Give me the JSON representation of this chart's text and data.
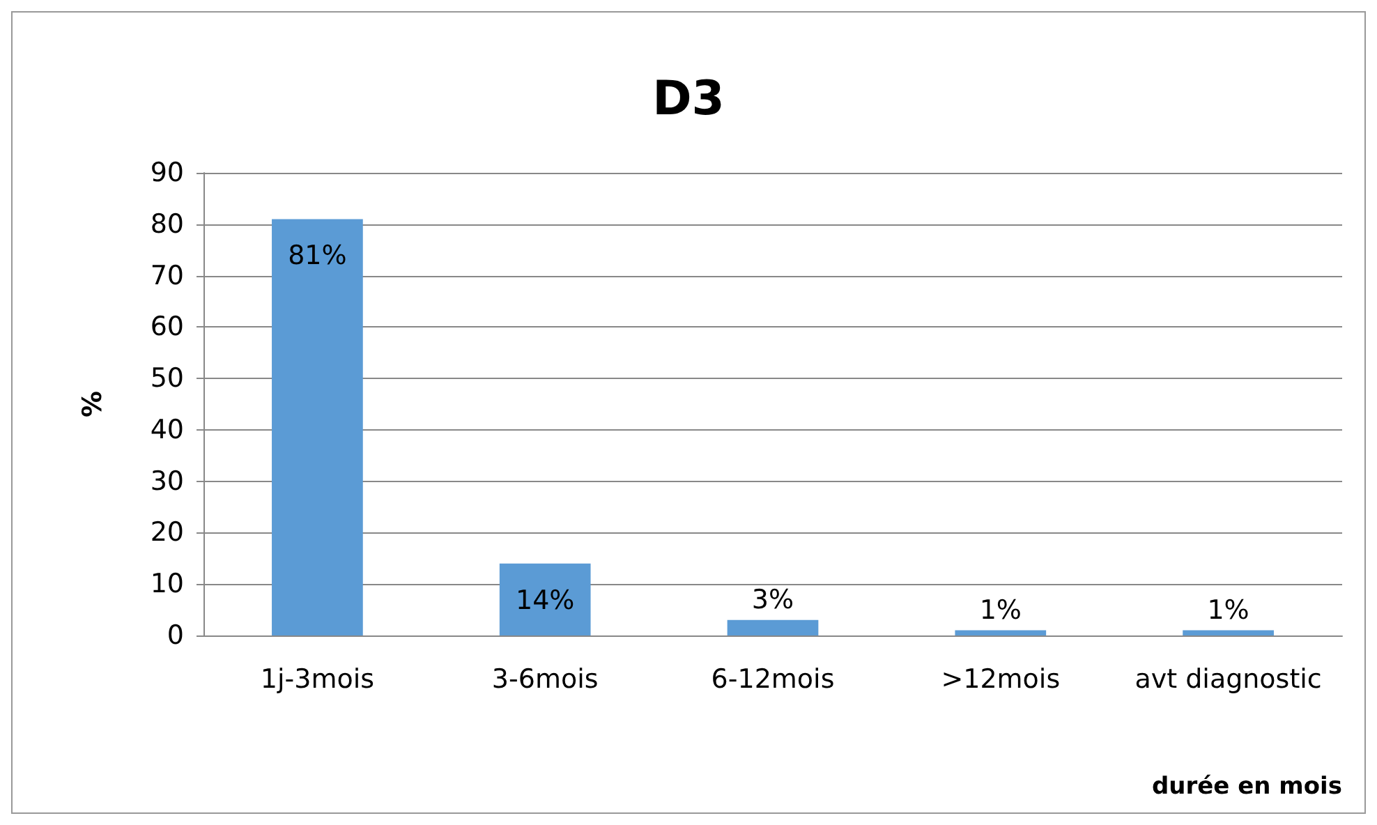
{
  "chart_data": {
    "type": "bar",
    "title": "D3",
    "ylabel": "%",
    "xlabel": "durée en mois",
    "categories": [
      "1j-3mois",
      "3-6mois",
      "6-12mois",
      ">12mois",
      "avt diagnostic"
    ],
    "values": [
      81,
      14,
      3,
      1,
      1
    ],
    "value_labels": [
      "81%",
      "14%",
      "3%",
      "1%",
      "1%"
    ],
    "color": "#5b9bd5",
    "ylim": [
      0,
      90
    ],
    "yticks": [
      0,
      10,
      20,
      30,
      40,
      50,
      60,
      70,
      80,
      90
    ],
    "grid": "y"
  }
}
